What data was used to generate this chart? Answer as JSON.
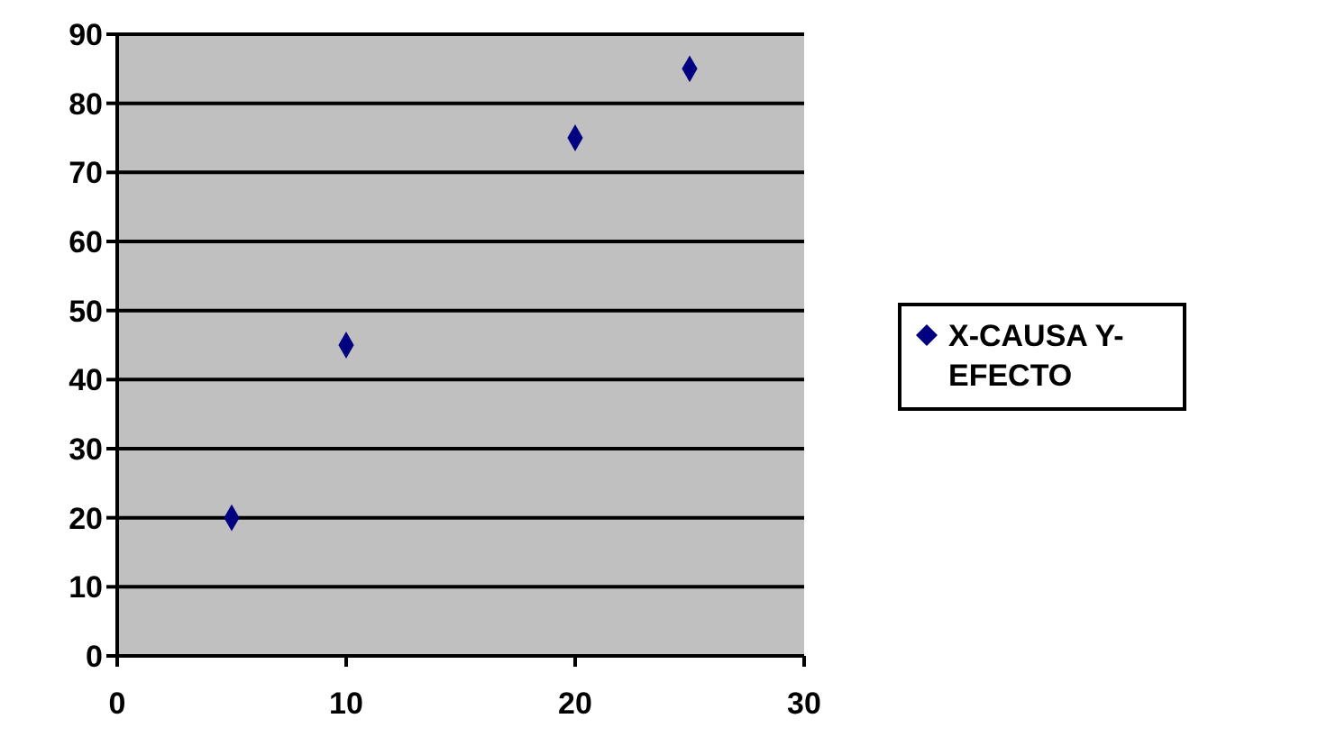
{
  "chart_data": {
    "type": "scatter",
    "x": [
      5,
      10,
      20,
      25
    ],
    "series": [
      {
        "name": "X-CAUSA Y-EFECTO",
        "color": "#000080",
        "values": [
          20,
          45,
          75,
          85
        ]
      }
    ],
    "xlim": [
      0,
      30
    ],
    "xticks": [
      0,
      10,
      20,
      30
    ],
    "ylim": [
      0,
      90
    ],
    "yticks": [
      0,
      10,
      20,
      30,
      40,
      50,
      60,
      70,
      80,
      90
    ],
    "grid": "y",
    "legend": "right",
    "marker": "diamond"
  }
}
